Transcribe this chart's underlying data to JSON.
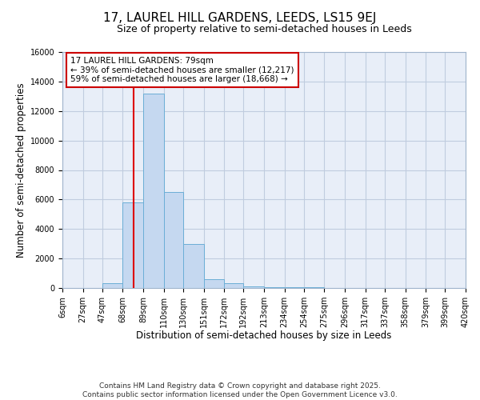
{
  "title": "17, LAUREL HILL GARDENS, LEEDS, LS15 9EJ",
  "subtitle": "Size of property relative to semi-detached houses in Leeds",
  "xlabel": "Distribution of semi-detached houses by size in Leeds",
  "ylabel": "Number of semi-detached properties",
  "bin_edges": [
    6,
    27,
    47,
    68,
    89,
    110,
    130,
    151,
    172,
    192,
    213,
    234,
    254,
    275,
    296,
    317,
    337,
    358,
    379,
    399,
    420
  ],
  "bar_heights": [
    0,
    0,
    300,
    5800,
    13200,
    6500,
    3000,
    600,
    350,
    100,
    50,
    50,
    30,
    20,
    10,
    5,
    0,
    0,
    0,
    0
  ],
  "bar_color": "#c5d8f0",
  "bar_edge_color": "#6baed6",
  "property_size": 79,
  "red_line_color": "#dd0000",
  "annotation_text": "17 LAUREL HILL GARDENS: 79sqm\n← 39% of semi-detached houses are smaller (12,217)\n59% of semi-detached houses are larger (18,668) →",
  "annotation_box_color": "#ffffff",
  "annotation_box_edge": "#cc0000",
  "ylim": [
    0,
    16000
  ],
  "yticks": [
    0,
    2000,
    4000,
    6000,
    8000,
    10000,
    12000,
    14000,
    16000
  ],
  "tick_labels": [
    "6sqm",
    "27sqm",
    "47sqm",
    "68sqm",
    "89sqm",
    "110sqm",
    "130sqm",
    "151sqm",
    "172sqm",
    "192sqm",
    "213sqm",
    "234sqm",
    "254sqm",
    "275sqm",
    "296sqm",
    "317sqm",
    "337sqm",
    "358sqm",
    "379sqm",
    "399sqm",
    "420sqm"
  ],
  "footer_line1": "Contains HM Land Registry data © Crown copyright and database right 2025.",
  "footer_line2": "Contains public sector information licensed under the Open Government Licence v3.0.",
  "bg_color": "#ffffff",
  "plot_bg_color": "#e8eef8",
  "grid_color": "#c0ccdf",
  "title_fontsize": 11,
  "subtitle_fontsize": 9,
  "label_fontsize": 8.5,
  "tick_fontsize": 7,
  "footer_fontsize": 6.5,
  "annotation_fontsize": 7.5
}
